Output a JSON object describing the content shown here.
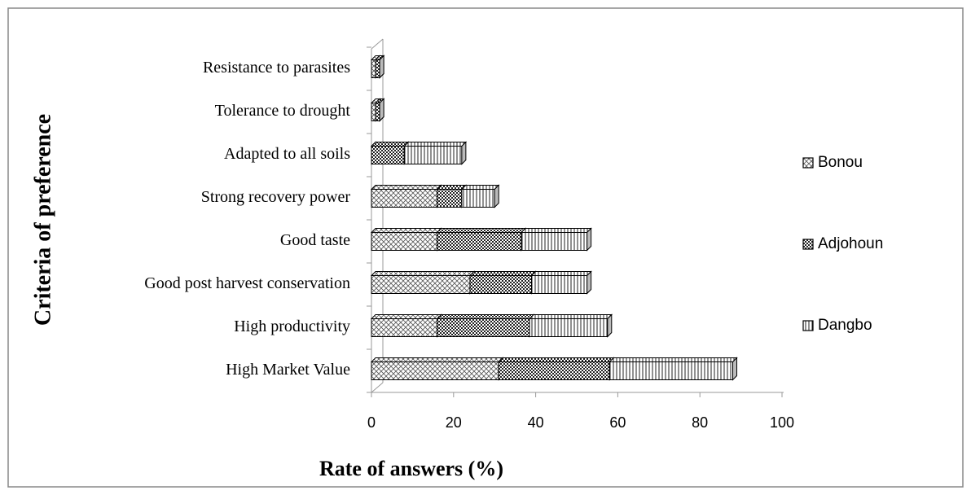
{
  "chart_data": {
    "type": "bar",
    "orientation": "horizontal",
    "stacked": true,
    "xlabel": "Rate of answers (%)",
    "ylabel": "Criteria of preference",
    "categories": [
      "High Market Value",
      "High productivity",
      "Good post harvest conservation",
      "Good taste",
      "Strong recovery power",
      "Adapted to all soils",
      "Tolerance to drought",
      "Resistance to parasites"
    ],
    "series": [
      {
        "name": "Bonou",
        "color": "#000000",
        "values": [
          31,
          16,
          24,
          16,
          16,
          0,
          1,
          1
        ]
      },
      {
        "name": "Adjohoun",
        "color": "#000000",
        "values": [
          27,
          22.5,
          15,
          20.5,
          6,
          8,
          1,
          1
        ]
      },
      {
        "name": "Dangbo",
        "color": "#000000",
        "values": [
          30,
          19,
          13.5,
          16,
          8,
          14,
          0,
          0
        ]
      }
    ],
    "xlim": [
      0,
      100
    ],
    "xticks": [
      0,
      20,
      40,
      60,
      80,
      100
    ],
    "legend": "right"
  }
}
